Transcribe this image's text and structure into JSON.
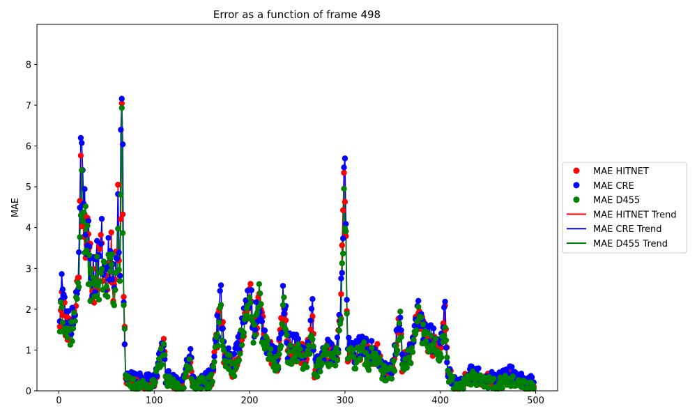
{
  "chart_data": {
    "type": "line",
    "title": "Error as a function of frame 498",
    "xlabel": "",
    "ylabel": "MAE",
    "xlim": [
      -23,
      523
    ],
    "ylim": [
      0,
      8.98
    ],
    "xticks": [
      0,
      100,
      200,
      300,
      400,
      500
    ],
    "yticks": [
      0,
      1,
      2,
      3,
      4,
      5,
      6,
      7,
      8
    ],
    "grid": false,
    "legend_position": "right",
    "colors": {
      "hitnet": "#ff0000",
      "cre": "#0000ff",
      "d455": "#008000"
    },
    "legend": [
      {
        "label": "MAE HITNET",
        "kind": "marker",
        "color": "#ff0000"
      },
      {
        "label": "MAE CRE",
        "kind": "marker",
        "color": "#0000ff"
      },
      {
        "label": "MAE D455",
        "kind": "marker",
        "color": "#008000"
      },
      {
        "label": "MAE HITNET Trend",
        "kind": "line",
        "color": "#ff0000"
      },
      {
        "label": "MAE CRE Trend",
        "kind": "line",
        "color": "#0000ff"
      },
      {
        "label": "MAE D455 Trend",
        "kind": "line",
        "color": "#008000"
      }
    ],
    "keyframes": [
      [
        1,
        1.8
      ],
      [
        3,
        2.6
      ],
      [
        5,
        2.0
      ],
      [
        7,
        1.7
      ],
      [
        10,
        1.5
      ],
      [
        15,
        1.7
      ],
      [
        18,
        2.1
      ],
      [
        21,
        3.3
      ],
      [
        23,
        5.2
      ],
      [
        25,
        4.7
      ],
      [
        27,
        4.2
      ],
      [
        30,
        3.6
      ],
      [
        35,
        2.6
      ],
      [
        40,
        2.9
      ],
      [
        45,
        3.3
      ],
      [
        50,
        2.6
      ],
      [
        55,
        3.5
      ],
      [
        58,
        2.4
      ],
      [
        62,
        4.2
      ],
      [
        64,
        3.3
      ],
      [
        66,
        7.0
      ],
      [
        68,
        2.5
      ],
      [
        70,
        0.3
      ],
      [
        80,
        0.2
      ],
      [
        100,
        0.2
      ],
      [
        110,
        1.2
      ],
      [
        112,
        0.3
      ],
      [
        130,
        0.1
      ],
      [
        138,
        0.9
      ],
      [
        140,
        0.2
      ],
      [
        160,
        0.3
      ],
      [
        168,
        1.7
      ],
      [
        170,
        2.2
      ],
      [
        173,
        0.9
      ],
      [
        178,
        0.8
      ],
      [
        183,
        0.5
      ],
      [
        190,
        1.2
      ],
      [
        200,
        2.3
      ],
      [
        205,
        1.5
      ],
      [
        210,
        2.3
      ],
      [
        215,
        1.3
      ],
      [
        220,
        1.0
      ],
      [
        230,
        0.7
      ],
      [
        236,
        2.2
      ],
      [
        240,
        1.0
      ],
      [
        250,
        1.0
      ],
      [
        260,
        0.8
      ],
      [
        266,
        1.8
      ],
      [
        268,
        0.5
      ],
      [
        275,
        0.7
      ],
      [
        280,
        1.0
      ],
      [
        290,
        0.8
      ],
      [
        295,
        1.5
      ],
      [
        298,
        4.2
      ],
      [
        300,
        5.0
      ],
      [
        303,
        1.0
      ],
      [
        310,
        0.8
      ],
      [
        318,
        1.1
      ],
      [
        325,
        0.8
      ],
      [
        332,
        1.0
      ],
      [
        340,
        0.5
      ],
      [
        350,
        0.5
      ],
      [
        358,
        1.8
      ],
      [
        360,
        0.6
      ],
      [
        370,
        1.0
      ],
      [
        377,
        1.8
      ],
      [
        382,
        1.5
      ],
      [
        390,
        1.2
      ],
      [
        400,
        1.0
      ],
      [
        405,
        1.7
      ],
      [
        408,
        0.4
      ],
      [
        415,
        0.2
      ],
      [
        420,
        0.1
      ],
      [
        432,
        0.4
      ],
      [
        440,
        0.3
      ],
      [
        450,
        0.3
      ],
      [
        460,
        0.2
      ],
      [
        472,
        0.4
      ],
      [
        480,
        0.2
      ],
      [
        490,
        0.2
      ],
      [
        498,
        0.15
      ]
    ],
    "series": [
      {
        "name": "MAE HITNET",
        "color": "#ff0000",
        "offset": 0.0,
        "scale": 1.0,
        "seed": 11
      },
      {
        "name": "MAE CRE",
        "color": "#0000ff",
        "offset": 0.05,
        "scale": 1.05,
        "seed": 23
      },
      {
        "name": "MAE D455",
        "color": "#008000",
        "offset": -0.05,
        "scale": 0.95,
        "seed": 37
      }
    ],
    "x_start": 1,
    "x_end": 498
  }
}
